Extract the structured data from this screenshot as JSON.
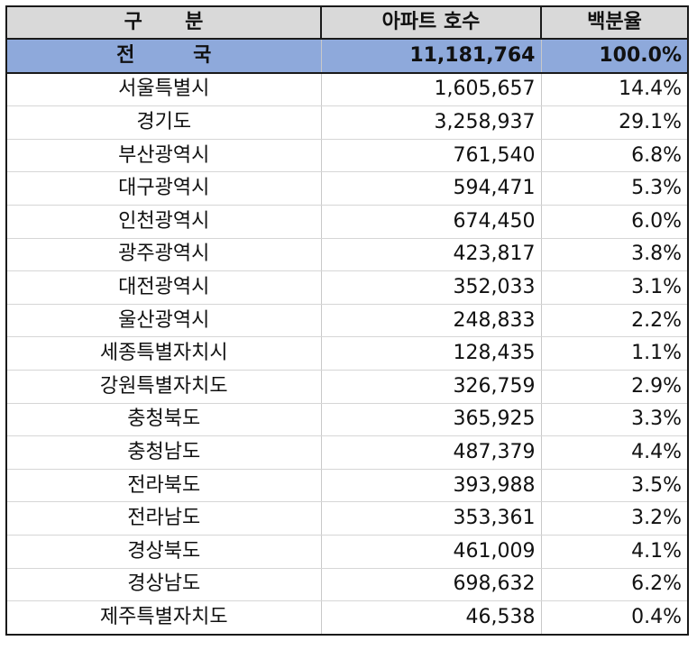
{
  "table": {
    "headers": [
      "구 분",
      "아파트 호수",
      "백분율"
    ],
    "total": {
      "name": "전 국",
      "count": "11,181,764",
      "pct": "100.0%"
    },
    "rows": [
      {
        "name": "서울특별시",
        "count": "1,605,657",
        "pct": "14.4%"
      },
      {
        "name": "경기도",
        "count": "3,258,937",
        "pct": "29.1%"
      },
      {
        "name": "부산광역시",
        "count": "761,540",
        "pct": "6.8%"
      },
      {
        "name": "대구광역시",
        "count": "594,471",
        "pct": "5.3%"
      },
      {
        "name": "인천광역시",
        "count": "674,450",
        "pct": "6.0%"
      },
      {
        "name": "광주광역시",
        "count": "423,817",
        "pct": "3.8%"
      },
      {
        "name": "대전광역시",
        "count": "352,033",
        "pct": "3.1%"
      },
      {
        "name": "울산광역시",
        "count": "248,833",
        "pct": "2.2%"
      },
      {
        "name": "세종특별자치시",
        "count": "128,435",
        "pct": "1.1%"
      },
      {
        "name": "강원특별자치도",
        "count": "326,759",
        "pct": "2.9%"
      },
      {
        "name": "충청북도",
        "count": "365,925",
        "pct": "3.3%"
      },
      {
        "name": "충청남도",
        "count": "487,379",
        "pct": "4.4%"
      },
      {
        "name": "전라북도",
        "count": "393,988",
        "pct": "3.5%"
      },
      {
        "name": "전라남도",
        "count": "353,361",
        "pct": "3.2%"
      },
      {
        "name": "경상북도",
        "count": "461,009",
        "pct": "4.1%"
      },
      {
        "name": "경상남도",
        "count": "698,632",
        "pct": "6.2%"
      },
      {
        "name": "제주특별자치도",
        "count": "46,538",
        "pct": "0.4%"
      }
    ]
  }
}
